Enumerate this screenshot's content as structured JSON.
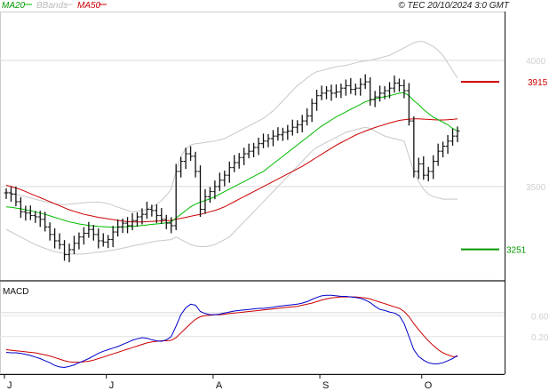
{
  "chart_data": {
    "type": "line",
    "copyright": "© TEC 20/10/2024 3:0 GMT",
    "legend": [
      {
        "label": "MA20",
        "color": "#00bb00"
      },
      {
        "label": "BBands",
        "color": "#c8c8c8"
      },
      {
        "label": "MA50",
        "color": "#cc0000"
      }
    ],
    "price": {
      "ylim": [
        3130,
        4190
      ],
      "yticks": [
        {
          "value": 4000,
          "label": "4000"
        },
        {
          "value": 3500,
          "label": "3500"
        }
      ],
      "levels": [
        {
          "value": 3915,
          "label": "3915",
          "color": "#cc0000"
        },
        {
          "value": 3251,
          "label": "3251",
          "color": "#009900"
        }
      ]
    },
    "macd": {
      "title": "MACD",
      "ylim": [
        -0.5,
        1.25
      ],
      "yticks": [
        {
          "value": 0.6,
          "label": "0.60"
        },
        {
          "value": 0.2,
          "label": "0.20"
        }
      ]
    },
    "months": [
      {
        "label": "J",
        "index": 0
      },
      {
        "label": "J",
        "index": 21
      },
      {
        "label": "A",
        "index": 43
      },
      {
        "label": "S",
        "index": 65
      },
      {
        "label": "O",
        "index": 86
      }
    ],
    "series": {
      "close": [
        3475,
        3470,
        3440,
        3400,
        3395,
        3385,
        3380,
        3370,
        3340,
        3310,
        3285,
        3270,
        3230,
        3250,
        3275,
        3300,
        3315,
        3330,
        3310,
        3285,
        3280,
        3290,
        3320,
        3340,
        3355,
        3345,
        3365,
        3380,
        3390,
        3410,
        3405,
        3385,
        3370,
        3355,
        3345,
        3560,
        3600,
        3630,
        3620,
        3560,
        3410,
        3460,
        3480,
        3500,
        3525,
        3545,
        3575,
        3595,
        3615,
        3630,
        3640,
        3655,
        3670,
        3680,
        3690,
        3700,
        3705,
        3715,
        3720,
        3735,
        3745,
        3760,
        3780,
        3830,
        3860,
        3870,
        3880,
        3870,
        3875,
        3890,
        3900,
        3885,
        3890,
        3905,
        3915,
        3845,
        3855,
        3870,
        3880,
        3890,
        3910,
        3900,
        3880,
        3760,
        3560,
        3590,
        3545,
        3560,
        3600,
        3640,
        3660,
        3680,
        3700,
        3720
      ],
      "ma20": [
        3420,
        3418,
        3415,
        3412,
        3408,
        3404,
        3400,
        3395,
        3390,
        3384,
        3378,
        3372,
        3366,
        3360,
        3356,
        3352,
        3349,
        3346,
        3344,
        3342,
        3341,
        3340,
        3339,
        3339,
        3340,
        3341,
        3342,
        3344,
        3346,
        3348,
        3350,
        3352,
        3354,
        3356,
        3360,
        3375,
        3390,
        3405,
        3420,
        3430,
        3438,
        3445,
        3452,
        3460,
        3470,
        3480,
        3490,
        3500,
        3510,
        3520,
        3530,
        3540,
        3550,
        3560,
        3575,
        3590,
        3605,
        3620,
        3635,
        3650,
        3665,
        3680,
        3695,
        3710,
        3725,
        3740,
        3752,
        3764,
        3776,
        3786,
        3796,
        3806,
        3816,
        3826,
        3836,
        3842,
        3848,
        3852,
        3856,
        3860,
        3865,
        3870,
        3872,
        3860,
        3840,
        3825,
        3805,
        3790,
        3775,
        3765,
        3755,
        3745,
        3730,
        3720
      ],
      "ma50": [
        3505,
        3500,
        3494,
        3488,
        3480,
        3472,
        3464,
        3456,
        3448,
        3440,
        3432,
        3424,
        3416,
        3408,
        3402,
        3396,
        3390,
        3386,
        3382,
        3378,
        3375,
        3372,
        3369,
        3366,
        3363,
        3361,
        3360,
        3360,
        3360,
        3361,
        3362,
        3363,
        3364,
        3365,
        3366,
        3370,
        3374,
        3378,
        3382,
        3386,
        3390,
        3395,
        3400,
        3405,
        3412,
        3420,
        3430,
        3440,
        3450,
        3460,
        3470,
        3480,
        3490,
        3500,
        3510,
        3520,
        3530,
        3540,
        3550,
        3560,
        3570,
        3580,
        3592,
        3604,
        3616,
        3628,
        3640,
        3652,
        3664,
        3674,
        3684,
        3694,
        3704,
        3712,
        3720,
        3727,
        3734,
        3740,
        3746,
        3752,
        3757,
        3762,
        3765,
        3767,
        3768,
        3768,
        3767,
        3766,
        3765,
        3764,
        3764,
        3765,
        3766,
        3768
      ],
      "bb_upper": [
        3480,
        3475,
        3470,
        3465,
        3460,
        3455,
        3450,
        3445,
        3440,
        3436,
        3432,
        3430,
        3428,
        3430,
        3432,
        3434,
        3436,
        3437,
        3438,
        3438,
        3436,
        3432,
        3425,
        3418,
        3412,
        3405,
        3400,
        3402,
        3405,
        3410,
        3420,
        3430,
        3445,
        3465,
        3490,
        3560,
        3620,
        3650,
        3665,
        3670,
        3672,
        3675,
        3678,
        3680,
        3685,
        3690,
        3700,
        3710,
        3720,
        3730,
        3740,
        3750,
        3760,
        3770,
        3785,
        3800,
        3820,
        3840,
        3860,
        3880,
        3900,
        3915,
        3930,
        3945,
        3955,
        3960,
        3965,
        3970,
        3975,
        3978,
        3980,
        3985,
        3990,
        3995,
        3998,
        4000,
        4005,
        4010,
        4015,
        4020,
        4030,
        4040,
        4050,
        4060,
        4070,
        4075,
        4075,
        4065,
        4055,
        4040,
        4020,
        3990,
        3960,
        3930
      ],
      "bb_lower": [
        3330,
        3320,
        3310,
        3300,
        3290,
        3280,
        3270,
        3262,
        3255,
        3248,
        3242,
        3238,
        3235,
        3233,
        3232,
        3232,
        3233,
        3235,
        3238,
        3240,
        3242,
        3245,
        3248,
        3252,
        3256,
        3260,
        3265,
        3268,
        3272,
        3276,
        3280,
        3284,
        3286,
        3288,
        3290,
        3300,
        3290,
        3280,
        3270,
        3265,
        3262,
        3262,
        3265,
        3270,
        3280,
        3290,
        3300,
        3320,
        3340,
        3360,
        3380,
        3400,
        3420,
        3440,
        3460,
        3480,
        3500,
        3520,
        3540,
        3560,
        3580,
        3600,
        3620,
        3640,
        3655,
        3665,
        3675,
        3685,
        3695,
        3705,
        3715,
        3720,
        3725,
        3730,
        3735,
        3730,
        3720,
        3710,
        3700,
        3695,
        3690,
        3685,
        3680,
        3620,
        3560,
        3520,
        3490,
        3470,
        3460,
        3455,
        3450,
        3450,
        3450,
        3450
      ],
      "macd": [
        -0.1,
        -0.11,
        -0.11,
        -0.12,
        -0.14,
        -0.16,
        -0.19,
        -0.22,
        -0.26,
        -0.3,
        -0.35,
        -0.38,
        -0.39,
        -0.37,
        -0.34,
        -0.3,
        -0.26,
        -0.22,
        -0.17,
        -0.12,
        -0.08,
        -0.05,
        -0.02,
        0.01,
        0.05,
        0.09,
        0.13,
        0.16,
        0.18,
        0.17,
        0.14,
        0.12,
        0.11,
        0.14,
        0.2,
        0.4,
        0.62,
        0.75,
        0.82,
        0.8,
        0.68,
        0.64,
        0.62,
        0.62,
        0.63,
        0.65,
        0.67,
        0.69,
        0.7,
        0.71,
        0.72,
        0.73,
        0.74,
        0.74,
        0.75,
        0.76,
        0.78,
        0.79,
        0.8,
        0.81,
        0.82,
        0.84,
        0.87,
        0.91,
        0.95,
        0.98,
        0.99,
        0.99,
        0.98,
        0.97,
        0.97,
        0.96,
        0.95,
        0.93,
        0.9,
        0.85,
        0.78,
        0.72,
        0.7,
        0.67,
        0.65,
        0.6,
        0.45,
        0.2,
        -0.05,
        -0.18,
        -0.25,
        -0.3,
        -0.32,
        -0.32,
        -0.3,
        -0.26,
        -0.22,
        -0.16
      ],
      "signal": [
        -0.05,
        -0.06,
        -0.07,
        -0.08,
        -0.09,
        -0.1,
        -0.11,
        -0.13,
        -0.15,
        -0.17,
        -0.2,
        -0.23,
        -0.26,
        -0.28,
        -0.29,
        -0.29,
        -0.28,
        -0.27,
        -0.25,
        -0.22,
        -0.19,
        -0.16,
        -0.13,
        -0.1,
        -0.07,
        -0.04,
        -0.01,
        0.02,
        0.05,
        0.08,
        0.1,
        0.11,
        0.12,
        0.12,
        0.13,
        0.18,
        0.27,
        0.36,
        0.45,
        0.53,
        0.58,
        0.6,
        0.61,
        0.62,
        0.62,
        0.63,
        0.64,
        0.65,
        0.66,
        0.67,
        0.68,
        0.69,
        0.7,
        0.71,
        0.72,
        0.73,
        0.74,
        0.75,
        0.76,
        0.77,
        0.78,
        0.8,
        0.82,
        0.84,
        0.87,
        0.9,
        0.92,
        0.94,
        0.95,
        0.96,
        0.96,
        0.96,
        0.96,
        0.95,
        0.94,
        0.92,
        0.89,
        0.86,
        0.83,
        0.8,
        0.77,
        0.74,
        0.68,
        0.58,
        0.45,
        0.33,
        0.22,
        0.12,
        0.03,
        -0.05,
        -0.11,
        -0.15,
        -0.18,
        -0.18
      ]
    }
  }
}
